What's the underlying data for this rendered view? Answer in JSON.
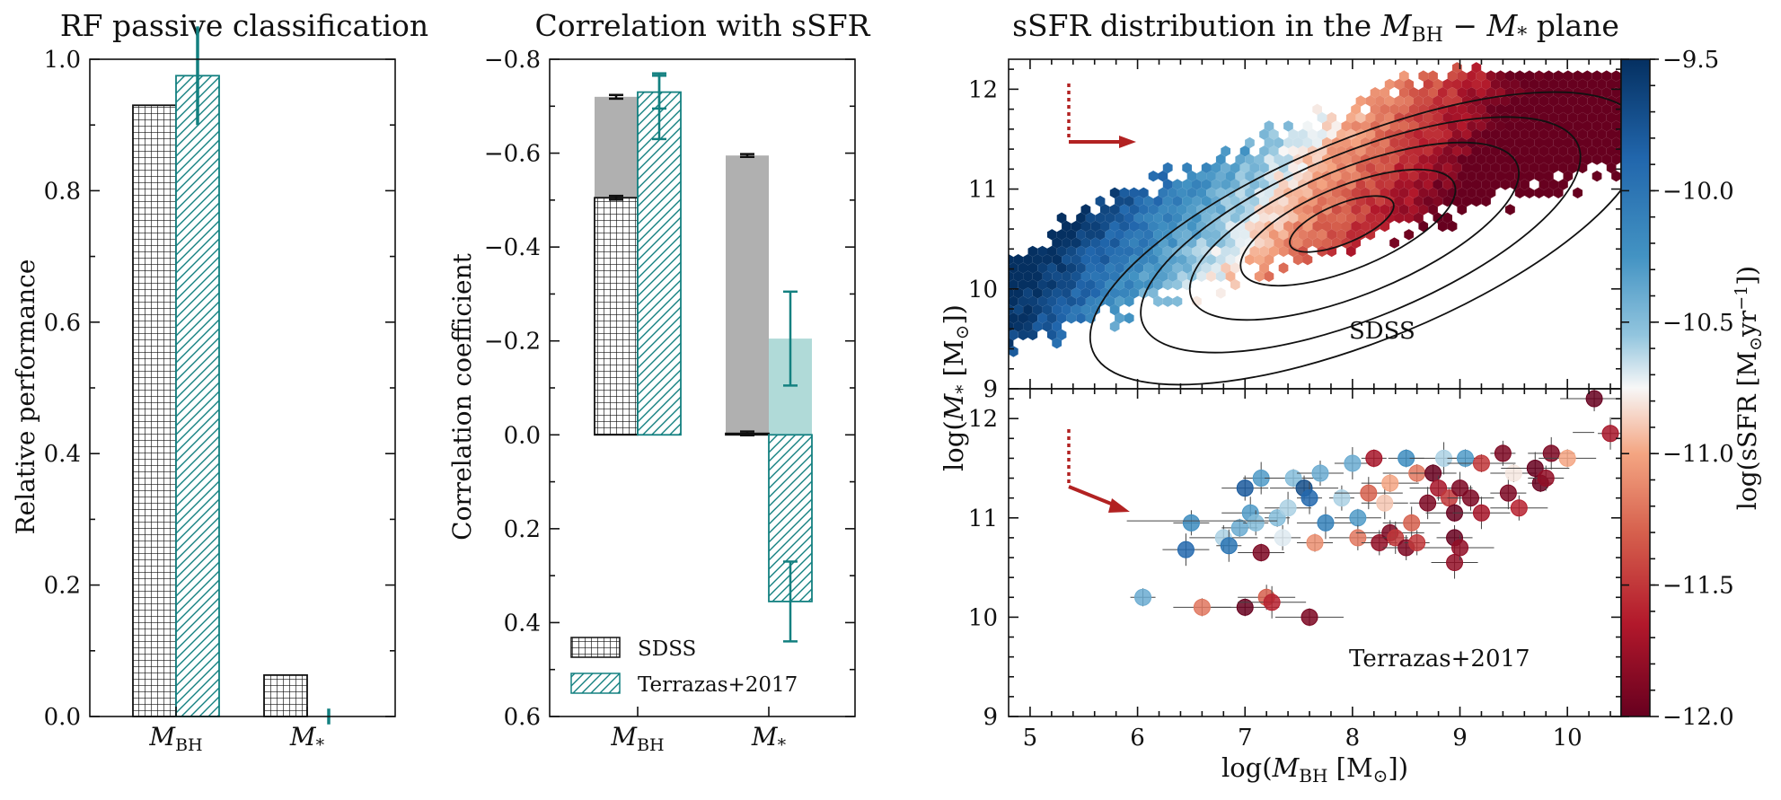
{
  "chart_data": [
    {
      "id": "panel1",
      "type": "bar",
      "title": "RF passive classification",
      "ylabel": "Relative performance",
      "categories": [
        "M_BH",
        "M_*"
      ],
      "category_labels": [
        {
          "base": "M",
          "sub": "BH"
        },
        {
          "base": "M",
          "sub": "*"
        }
      ],
      "ylim": [
        0,
        1.0
      ],
      "yticks": [
        "0.0",
        "0.2",
        "0.4",
        "0.6",
        "0.8",
        "1.0"
      ],
      "series": [
        {
          "name": "SDSS",
          "values": [
            0.93,
            0.063
          ],
          "errors": [
            null,
            null
          ],
          "hatch": "grid",
          "color": "#111111"
        },
        {
          "name": "Terrazas+2017",
          "values": [
            0.975,
            0.0
          ],
          "errors": [
            0.075,
            0.012
          ],
          "hatch": "diag",
          "color": "#138080"
        }
      ]
    },
    {
      "id": "panel2",
      "type": "bar",
      "title": "Correlation with sSFR",
      "ylabel": "Correlation coefficient",
      "categories": [
        "M_BH",
        "M_*"
      ],
      "category_labels": [
        {
          "base": "M",
          "sub": "BH"
        },
        {
          "base": "M",
          "sub": "*"
        }
      ],
      "ylim": [
        0.6,
        -0.8
      ],
      "yticks": [
        "−0.8",
        "−0.6",
        "−0.4",
        "−0.2",
        "0.0",
        "0.2",
        "0.4",
        "0.6"
      ],
      "ytick_values": [
        -0.8,
        -0.6,
        -0.4,
        -0.2,
        0.0,
        0.2,
        0.4,
        0.6
      ],
      "series": [
        {
          "name": "SDSS",
          "values": [
            -0.505,
            -0.003
          ],
          "errors": [
            0.004,
            0.004
          ],
          "hatch": "grid",
          "color": "#111111"
        },
        {
          "name": "Terrazas+2017",
          "values": [
            -0.73,
            0.355
          ],
          "errors": [
            0.035,
            0.085
          ],
          "hatch": "diag",
          "color": "#138080"
        }
      ],
      "background_series": [
        {
          "name": "SDSS",
          "values": [
            -0.72,
            -0.595
          ],
          "errors": [
            0.004,
            0.003
          ],
          "color": "#b0b0b0"
        },
        {
          "name": "Terrazas+2017",
          "values": [
            -0.7,
            -0.205
          ],
          "errors": [
            0.07,
            0.1
          ],
          "color": "#b0dad8"
        }
      ],
      "legend": {
        "position": "lower-left",
        "entries": [
          "SDSS",
          "Terrazas+2017"
        ]
      }
    },
    {
      "id": "panel3",
      "type": "scatter",
      "title": "sSFR distribution in the M_BH − M_* plane",
      "title_parts": {
        "pre": "sSFR distribution in the ",
        "a": "M",
        "a_sub": "BH",
        "mid": " − ",
        "b": "M",
        "b_sub": "*",
        "post": " plane"
      },
      "xlabel": "log(M_BH [M⊙])",
      "ylabel": "log(M_* [M⊙])",
      "xlim": [
        4.8,
        10.5
      ],
      "ylim": [
        9,
        12.3
      ],
      "xticks": [
        "5",
        "6",
        "7",
        "8",
        "9",
        "10"
      ],
      "yticks_top": [
        "9",
        "10",
        "11",
        "12"
      ],
      "yticks_bottom": [
        "9",
        "10",
        "11",
        "12"
      ],
      "colorbar": {
        "label": "log(sSFR [M⊙yr⁻¹])",
        "range": [
          -12.0,
          -9.5
        ],
        "ticks": [
          "−9.5",
          "−10.0",
          "−10.5",
          "−11.0",
          "−11.5",
          "−12.0"
        ],
        "tick_values": [
          -9.5,
          -10.0,
          -10.5,
          -11.0,
          -11.5,
          -12.0
        ],
        "colormap": "RdBu"
      },
      "subpanels": [
        {
          "label": "SDSS",
          "kind": "hexbin+contours",
          "arrow": {
            "x": 5.4,
            "y": 11.5
          }
        },
        {
          "label": "Terrazas+2017",
          "kind": "scatter",
          "arrow": {
            "x": 5.4,
            "y": 11.3
          },
          "points": [
            [
              6.05,
              10.2,
              -10.4
            ],
            [
              6.5,
              10.95,
              -10.2
            ],
            [
              6.45,
              10.68,
              -9.9
            ],
            [
              6.6,
              10.1,
              -11.2
            ],
            [
              6.8,
              10.8,
              -10.6
            ],
            [
              6.85,
              10.72,
              -10.0
            ],
            [
              6.95,
              10.9,
              -10.4
            ],
            [
              7.0,
              11.3,
              -9.8
            ],
            [
              7.05,
              11.05,
              -10.3
            ],
            [
              7.0,
              10.1,
              -12.0
            ],
            [
              7.1,
              10.95,
              -10.5
            ],
            [
              7.15,
              11.4,
              -10.3
            ],
            [
              7.15,
              10.65,
              -11.9
            ],
            [
              7.2,
              10.2,
              -11.3
            ],
            [
              7.25,
              10.15,
              -11.6
            ],
            [
              7.3,
              11.0,
              -10.5
            ],
            [
              7.35,
              10.8,
              -10.7
            ],
            [
              7.4,
              11.1,
              -10.6
            ],
            [
              7.45,
              11.4,
              -10.5
            ],
            [
              7.55,
              11.3,
              -9.7
            ],
            [
              7.6,
              11.2,
              -9.9
            ],
            [
              7.65,
              10.75,
              -11.1
            ],
            [
              7.7,
              11.45,
              -10.4
            ],
            [
              7.75,
              10.95,
              -10.1
            ],
            [
              7.6,
              10.0,
              -11.9
            ],
            [
              7.9,
              11.2,
              -10.6
            ],
            [
              8.0,
              11.55,
              -10.4
            ],
            [
              8.05,
              11.0,
              -10.3
            ],
            [
              8.05,
              10.8,
              -11.2
            ],
            [
              8.15,
              11.25,
              -11.3
            ],
            [
              8.2,
              11.6,
              -11.7
            ],
            [
              8.25,
              10.75,
              -11.8
            ],
            [
              8.3,
              11.15,
              -10.9
            ],
            [
              8.35,
              11.35,
              -11.0
            ],
            [
              8.35,
              10.85,
              -11.9
            ],
            [
              8.4,
              10.8,
              -11.5
            ],
            [
              8.5,
              11.6,
              -10.2
            ],
            [
              8.5,
              10.7,
              -11.9
            ],
            [
              8.55,
              10.95,
              -11.3
            ],
            [
              8.6,
              11.45,
              -11.2
            ],
            [
              8.6,
              10.75,
              -11.5
            ],
            [
              8.7,
              11.15,
              -11.9
            ],
            [
              8.75,
              11.45,
              -12.0
            ],
            [
              8.8,
              11.3,
              -11.7
            ],
            [
              8.85,
              11.6,
              -10.6
            ],
            [
              8.9,
              11.2,
              -11.5
            ],
            [
              8.95,
              10.8,
              -12.0
            ],
            [
              8.95,
              10.55,
              -11.8
            ],
            [
              8.95,
              11.05,
              -12.0
            ],
            [
              9.0,
              10.7,
              -11.8
            ],
            [
              9.0,
              11.3,
              -11.9
            ],
            [
              9.05,
              11.6,
              -10.3
            ],
            [
              9.1,
              11.2,
              -11.9
            ],
            [
              9.2,
              11.05,
              -11.7
            ],
            [
              9.2,
              11.55,
              -11.5
            ],
            [
              9.4,
              11.65,
              -11.9
            ],
            [
              9.45,
              11.25,
              -11.9
            ],
            [
              9.5,
              11.45,
              -10.8
            ],
            [
              9.55,
              11.1,
              -11.6
            ],
            [
              9.7,
              11.5,
              -12.0
            ],
            [
              9.75,
              11.35,
              -12.0
            ],
            [
              9.8,
              11.4,
              -11.8
            ],
            [
              9.85,
              11.65,
              -11.9
            ],
            [
              10.0,
              11.6,
              -11.0
            ],
            [
              10.25,
              12.2,
              -12.0
            ],
            [
              10.4,
              11.85,
              -11.7
            ]
          ]
        }
      ]
    }
  ]
}
